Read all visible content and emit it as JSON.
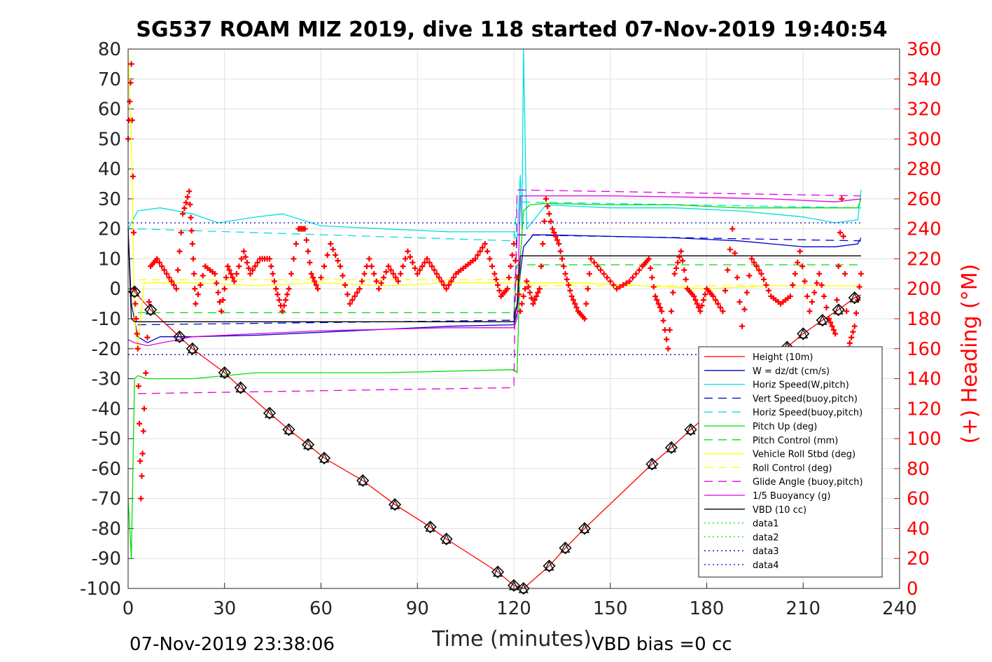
{
  "chart_data": {
    "type": "line",
    "title": "SG537 ROAM MIZ 2019, dive 118 started 07-Nov-2019 19:40:54",
    "xlabel": "Time (minutes)",
    "ylabel_right": "(+) Heading (°M)",
    "xlim": [
      0,
      240
    ],
    "ylim": [
      -100,
      80
    ],
    "y2lim": [
      0,
      360
    ],
    "x_ticks": [
      "0",
      "30",
      "60",
      "90",
      "120",
      "150",
      "180",
      "210",
      "240"
    ],
    "y_ticks": [
      "80",
      "70",
      "60",
      "50",
      "40",
      "30",
      "20",
      "10",
      "0",
      "-10",
      "-20",
      "-30",
      "-40",
      "-50",
      "-60",
      "-70",
      "-80",
      "-90",
      "-100"
    ],
    "y2_ticks": [
      "360",
      "340",
      "320",
      "300",
      "280",
      "260",
      "240",
      "220",
      "200",
      "180",
      "160",
      "140",
      "120",
      "100",
      "80",
      "60",
      "40",
      "20",
      "0"
    ],
    "grid": true,
    "legend_position": "lower-right",
    "footer_left": "07-Nov-2019 23:38:06",
    "footer_right": "VBD bias =0 cc",
    "colors": {
      "red": "#ff0000",
      "blue": "#0000cc",
      "cyan": "#00e0e0",
      "green": "#00e000",
      "yellow": "#ffff00",
      "magenta": "#e000e0",
      "black": "#000000",
      "grid": "#e0e0e0"
    },
    "series": [
      {
        "name": "Height (10m)",
        "color": "#ff0000",
        "style": "solid",
        "x": [
          0,
          2,
          7,
          16,
          20,
          30,
          35,
          44,
          50,
          56,
          61,
          73,
          83,
          94,
          99,
          115,
          120,
          123,
          131,
          136,
          142,
          163,
          169,
          175,
          205,
          210,
          216,
          221,
          226,
          228
        ],
        "y": [
          -1,
          -1,
          -7,
          -16,
          -20,
          -28,
          -33,
          -41.5,
          -47,
          -52,
          -56.5,
          -64,
          -72,
          -79.5,
          -83.5,
          -94.5,
          -99,
          -100,
          -92.5,
          -86.5,
          -80,
          -58.5,
          -53,
          -47,
          -19.5,
          -15,
          -10.5,
          -7,
          -3,
          -2
        ]
      },
      {
        "name": "W = dz/dt (cm/s)",
        "color": "#0000cc",
        "style": "solid",
        "x": [
          0,
          1,
          3,
          6,
          10,
          20,
          40,
          60,
          80,
          100,
          120,
          121,
          122,
          123,
          126,
          130,
          150,
          170,
          190,
          210,
          220,
          227,
          228
        ],
        "y": [
          20,
          -5,
          -16,
          -18,
          -16,
          -16,
          -15.5,
          -14.5,
          -13.5,
          -12.5,
          -12,
          -8,
          5,
          14,
          18,
          18,
          17.5,
          17,
          16,
          14,
          14,
          15,
          17
        ]
      },
      {
        "name": "Horiz Speed(W,pitch)",
        "color": "#00e0e0",
        "style": "solid",
        "x": [
          0,
          3,
          10,
          20,
          28,
          40,
          48,
          60,
          80,
          100,
          120,
          121,
          122,
          122.5,
          123,
          124,
          130,
          150,
          170,
          190,
          200,
          210,
          220,
          227,
          228
        ],
        "y": [
          20,
          26,
          27,
          25,
          22,
          24,
          25,
          21,
          20,
          19,
          19,
          16,
          38,
          20,
          80,
          20,
          28,
          27,
          27,
          26,
          25,
          24,
          22,
          23,
          33
        ]
      },
      {
        "name": "Vert Speed(buoy,pitch)",
        "color": "#0000cc",
        "style": "dashed",
        "x": [
          3,
          120,
          121,
          228
        ],
        "y": [
          -12,
          -10.5,
          18,
          16
        ]
      },
      {
        "name": "Horiz Speed(buoy,pitch)",
        "color": "#00e0e0",
        "style": "dashed",
        "x": [
          3,
          120,
          121,
          228
        ],
        "y": [
          20,
          16,
          29,
          27
        ]
      },
      {
        "name": "Pitch Up (deg)",
        "color": "#00e000",
        "style": "solid",
        "x": [
          0,
          1,
          2,
          3,
          6,
          20,
          40,
          60,
          80,
          100,
          120,
          121,
          122,
          123,
          125,
          130,
          150,
          170,
          190,
          210,
          220,
          227,
          228
        ],
        "y": [
          -70,
          -90,
          -30,
          -29,
          -30,
          -30,
          -28,
          -28,
          -28,
          -27.5,
          -27,
          -28,
          10,
          26,
          28,
          28.5,
          28,
          28,
          27,
          27,
          27,
          27,
          30
        ]
      },
      {
        "name": "Pitch Control (mm)",
        "color": "#00e000",
        "style": "dashed",
        "x": [
          3,
          120,
          121,
          228
        ],
        "y": [
          -8,
          -8,
          8,
          8
        ]
      },
      {
        "name": "Vehicle Roll Stbd (deg)",
        "color": "#ffff00",
        "style": "solid",
        "x": [
          0,
          1,
          2,
          3,
          5,
          20,
          40,
          60,
          80,
          100,
          120,
          140,
          160,
          180,
          200,
          220,
          228
        ],
        "y": [
          80,
          50,
          -10,
          -20,
          2,
          2,
          1,
          2,
          1,
          2,
          2,
          2,
          1,
          0,
          1,
          1,
          1
        ]
      },
      {
        "name": "Roll Control (deg)",
        "color": "#ffff00",
        "style": "dashed",
        "x": [
          3,
          120,
          121,
          228
        ],
        "y": [
          3,
          3,
          1,
          1
        ]
      },
      {
        "name": "Glide Angle (buoy,pitch)",
        "color": "#e000e0",
        "style": "dashed",
        "x": [
          3,
          120,
          121,
          228
        ],
        "y": [
          -35,
          -33,
          33,
          31
        ]
      },
      {
        "name": "1/5 Buoyancy (g)",
        "color": "#e000e0",
        "style": "solid",
        "x": [
          0,
          2,
          6,
          20,
          40,
          60,
          80,
          100,
          120,
          121,
          122,
          150,
          180,
          200,
          220,
          228
        ],
        "y": [
          -17,
          -18,
          -19,
          -16,
          -15,
          -14,
          -13.5,
          -13,
          -13,
          -10,
          31,
          31,
          30.5,
          30,
          29,
          30
        ]
      },
      {
        "name": "VBD (10 cc)",
        "color": "#000000",
        "style": "solid",
        "x": [
          0,
          1,
          2,
          120,
          121,
          122,
          228
        ],
        "y": [
          20,
          -10,
          -11,
          -11,
          -5,
          11,
          11
        ]
      },
      {
        "name": "data1",
        "color": "#00e000",
        "style": "dotted",
        "x": [],
        "y": []
      },
      {
        "name": "data2",
        "color": "#00e000",
        "style": "dotted",
        "x": [],
        "y": []
      },
      {
        "name": "data3",
        "color": "#0000cc",
        "style": "dotted",
        "x": [
          0,
          228
        ],
        "y": [
          22,
          22
        ]
      },
      {
        "name": "data4",
        "color": "#0000cc",
        "style": "dotted",
        "x": [
          0,
          228
        ],
        "y": [
          -22,
          -22
        ]
      },
      {
        "name": "(+) Heading (°M)",
        "axis": "right",
        "color": "#ff0000",
        "style": "plus-markers",
        "x": [
          0,
          1,
          2,
          3,
          4,
          5,
          7,
          9,
          12,
          15,
          17,
          19,
          20,
          21,
          24,
          27,
          29,
          31,
          33,
          36,
          38,
          41,
          44,
          46,
          48,
          50,
          53,
          55,
          57,
          59,
          63,
          66,
          69,
          72,
          75,
          78,
          81,
          84,
          87,
          90,
          93,
          96,
          99,
          102,
          105,
          108,
          111,
          114,
          116,
          118,
          120,
          122,
          124,
          126,
          128,
          130,
          132,
          134,
          136,
          138,
          140,
          142,
          144,
          148,
          152,
          156,
          160,
          162,
          164,
          166,
          168,
          170,
          172,
          174,
          176,
          178,
          180,
          182,
          185,
          188,
          191,
          194,
          197,
          200,
          203,
          206,
          209,
          212,
          215,
          218,
          220,
          222,
          224,
          226,
          228
        ],
        "y": [
          300,
          350,
          200,
          160,
          60,
          120,
          215,
          220,
          210,
          200,
          250,
          265,
          230,
          190,
          215,
          210,
          185,
          215,
          205,
          225,
          210,
          220,
          220,
          200,
          185,
          200,
          240,
          240,
          210,
          200,
          230,
          215,
          190,
          200,
          220,
          200,
          215,
          205,
          225,
          210,
          220,
          210,
          200,
          210,
          215,
          220,
          230,
          210,
          195,
          200,
          230,
          185,
          205,
          190,
          200,
          260,
          240,
          230,
          210,
          195,
          185,
          180,
          220,
          210,
          200,
          205,
          215,
          220,
          195,
          185,
          160,
          210,
          225,
          200,
          195,
          185,
          200,
          195,
          185,
          240,
          175,
          220,
          210,
          195,
          190,
          195,
          225,
          185,
          210,
          180,
          170,
          260,
          160,
          175,
          210
        ]
      },
      {
        "name": "waypoint-markers",
        "color": "#000000",
        "style": "diamond-triangle-markers",
        "x": [
          2,
          7,
          16,
          20,
          30,
          35,
          44,
          50,
          56,
          61,
          73,
          83,
          94,
          99,
          115,
          120,
          123,
          131,
          136,
          142,
          163,
          169,
          175,
          205,
          210,
          216,
          221,
          226
        ],
        "y": [
          -1,
          -7,
          -16,
          -20,
          -28,
          -33,
          -41.5,
          -47,
          -52,
          -56.5,
          -64,
          -72,
          -79.5,
          -83.5,
          -94.5,
          -99,
          -100,
          -92.5,
          -86.5,
          -80,
          -58.5,
          -53,
          -47,
          -19.5,
          -15,
          -10.5,
          -7,
          -3
        ]
      }
    ]
  }
}
